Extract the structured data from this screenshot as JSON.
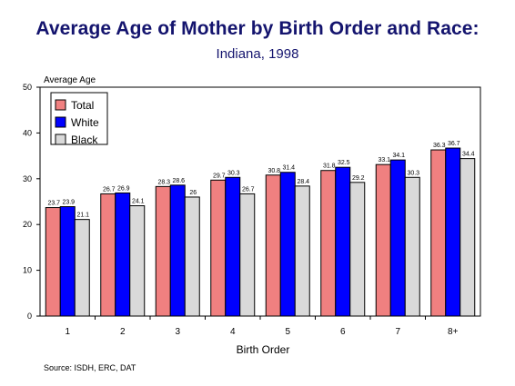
{
  "title": "Average Age of Mother by Birth Order and Race:",
  "subtitle": "Indiana, 1998",
  "source": "Source: ISDH, ERC, DAT",
  "colors": {
    "Total": "#f08080",
    "White": "#0000ff",
    "Black": "#d9d9d9",
    "title": "#14146e"
  },
  "chart_data": {
    "type": "bar",
    "categories": [
      "1",
      "2",
      "3",
      "4",
      "5",
      "6",
      "7",
      "8+"
    ],
    "series": [
      {
        "name": "Total",
        "values": [
          23.7,
          26.7,
          28.3,
          29.7,
          30.8,
          31.8,
          33.1,
          36.3
        ],
        "labels": [
          "23.7",
          "26.7",
          "28.3",
          "29.7",
          "30.8",
          "31.8",
          "33.1",
          "36.3"
        ]
      },
      {
        "name": "White",
        "values": [
          23.9,
          26.9,
          28.6,
          30.3,
          31.4,
          32.5,
          34.1,
          36.7
        ],
        "labels": [
          "23.9",
          "26.9",
          "28.6",
          "30.3",
          "31.4",
          "32.5",
          "34.1",
          "36.7"
        ]
      },
      {
        "name": "Black",
        "values": [
          21.1,
          24.1,
          26,
          26.7,
          28.4,
          29.2,
          30.3,
          34.4
        ],
        "labels": [
          "21.1",
          "24.1",
          "26",
          "26.7",
          "28.4",
          "29.2",
          "30.3",
          "34.4"
        ]
      }
    ],
    "title": "Average Age of Mother by Birth Order and Race:",
    "subtitle": "Indiana, 1998",
    "xlabel": "Birth Order",
    "ylabel": "Average Age",
    "ylim": [
      0,
      50
    ],
    "yticks": [
      "0",
      "10",
      "20",
      "30",
      "40",
      "50"
    ],
    "grid": false,
    "legend_position": "top-left"
  }
}
